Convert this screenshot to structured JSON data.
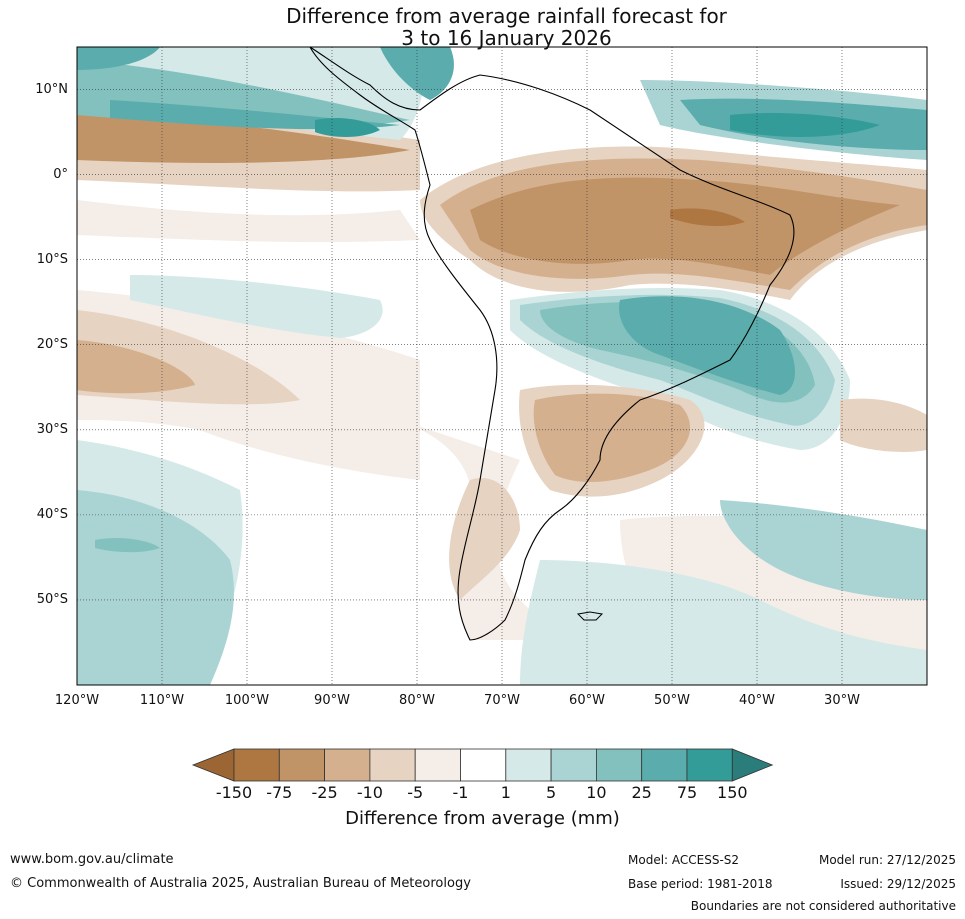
{
  "title": {
    "line1": "Difference from average rainfall forecast for",
    "line2": "3 to 16 January 2026"
  },
  "map": {
    "region": "South America",
    "lon_range": [
      -120,
      -20
    ],
    "lat_range": [
      -60,
      15
    ],
    "lat_labels": [
      "10°N",
      "0°",
      "10°S",
      "20°S",
      "30°S",
      "40°S",
      "50°S"
    ],
    "lon_labels": [
      "120°W",
      "110°W",
      "100°W",
      "90°W",
      "80°W",
      "70°W",
      "60°W",
      "50°W",
      "40°W",
      "30°W"
    ]
  },
  "colorbar": {
    "label": "Difference from average (mm)",
    "ticks": [
      "-150",
      "-75",
      "-25",
      "-10",
      "-5",
      "-1",
      "1",
      "5",
      "10",
      "25",
      "75",
      "150"
    ],
    "colors": [
      "#9c6634",
      "#ae7741",
      "#c19468",
      "#d4b08f",
      "#e6d3c1",
      "#f5ede8",
      "#ffffff",
      "#d4e9e8",
      "#aad4d3",
      "#83c1bf",
      "#5aadac",
      "#339c98",
      "#2a7d7a"
    ]
  },
  "footer": {
    "url": "www.bom.gov.au/climate",
    "copyright": "© Commonwealth of Australia 2025, Australian Bureau of Meteorology",
    "model": "Model: ACCESS-S2",
    "base_period": "Base period: 1981-2018",
    "model_run": "Model run: 27/12/2025",
    "issued": "Issued: 29/12/2025",
    "disclaimer": "Boundaries are not considered authoritative"
  }
}
